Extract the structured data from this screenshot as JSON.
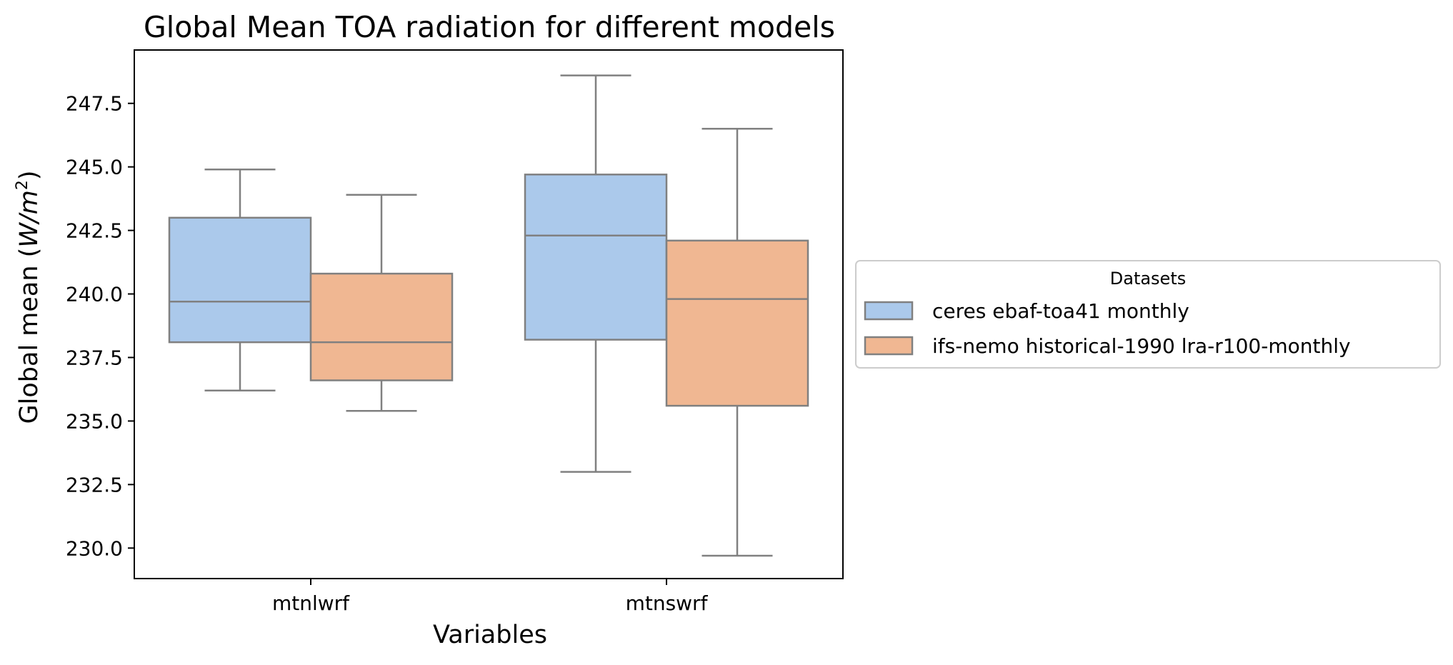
{
  "chart_data": {
    "type": "boxplot",
    "title": "Global Mean TOA radiation for different models",
    "xlabel": "Variables",
    "ylabel": "Global mean (W/m²)",
    "ylabel_parts": {
      "prefix": "Global mean (",
      "unit_base": "W/m",
      "unit_exp": "2",
      "suffix": ")"
    },
    "ylim": [
      228.8,
      249.6
    ],
    "yticks": [
      230.0,
      232.5,
      235.0,
      237.5,
      240.0,
      242.5,
      245.0,
      247.5
    ],
    "ytick_labels": [
      "230.0",
      "232.5",
      "235.0",
      "237.5",
      "240.0",
      "242.5",
      "245.0",
      "247.5"
    ],
    "categories": [
      "mtnlwrf",
      "mtnswrf"
    ],
    "legend": {
      "title": "Datasets",
      "placement": "center-left-outside"
    },
    "grid": false,
    "series": [
      {
        "name": "ceres ebaf-toa41 monthly",
        "color": "#abc9eb",
        "boxes": [
          {
            "category": "mtnlwrf",
            "whislo": 236.2,
            "q1": 238.1,
            "median": 239.7,
            "q3": 243.0,
            "whishi": 244.9
          },
          {
            "category": "mtnswrf",
            "whislo": 233.0,
            "q1": 238.2,
            "median": 242.3,
            "q3": 244.7,
            "whishi": 248.6
          }
        ]
      },
      {
        "name": "ifs-nemo historical-1990 lra-r100-monthly",
        "color": "#f0b792",
        "boxes": [
          {
            "category": "mtnlwrf",
            "whislo": 235.4,
            "q1": 236.6,
            "median": 238.1,
            "q3": 240.8,
            "whishi": 243.9
          },
          {
            "category": "mtnswrf",
            "whislo": 229.7,
            "q1": 235.6,
            "median": 239.8,
            "q3": 242.1,
            "whishi": 246.5
          }
        ]
      }
    ],
    "line_color": "#808080"
  }
}
